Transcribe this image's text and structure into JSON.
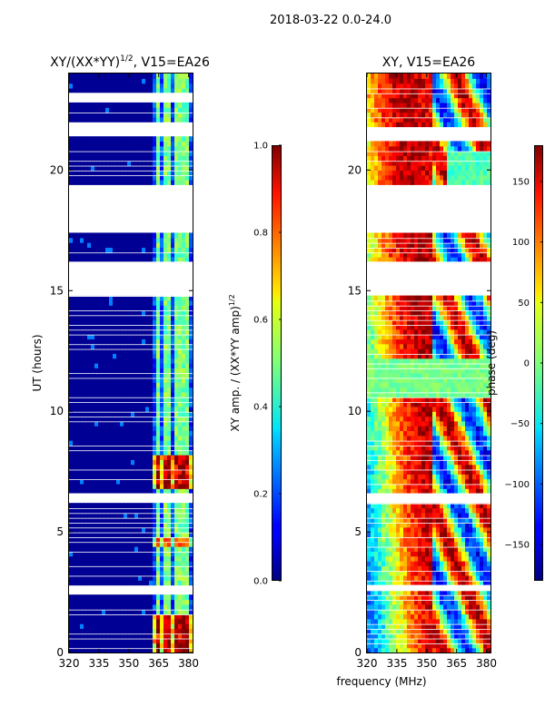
{
  "figure": {
    "suptitle": "2018-03-22 0.0-24.0",
    "common_xlabel": "frequency (MHz)"
  },
  "chart_data": [
    {
      "type": "heatmap",
      "title_main": "XY/(XX*YY)",
      "title_sup": "1/2",
      "title_tail": ", V15=EA26",
      "xlabel": "",
      "ylabel": "UT (hours)",
      "xlim": [
        320,
        382
      ],
      "ylim": [
        0,
        24
      ],
      "x_ticks": [
        320,
        335,
        350,
        365,
        380
      ],
      "y_ticks": [
        0,
        5,
        10,
        15,
        20
      ],
      "blank_bands": [
        [
          2.5,
          2.7
        ],
        [
          6.3,
          6.6
        ],
        [
          14.8,
          16.2
        ],
        [
          17.5,
          19.3
        ],
        [
          21.4,
          21.9
        ],
        [
          22.9,
          23.2
        ]
      ],
      "colorbar": {
        "label_main": "XY amp. / (XX*YY amp)",
        "label_sup": "1/2",
        "range": [
          0.0,
          1.0
        ],
        "ticks": [
          "0.0",
          "0.2",
          "0.4",
          "0.6",
          "0.8",
          "1.0"
        ],
        "tick_values": [
          0.0,
          0.2,
          0.4,
          0.6,
          0.8,
          1.0
        ]
      }
    },
    {
      "type": "heatmap",
      "title": "XY, V15=EA26",
      "xlabel": "",
      "ylabel": "",
      "xlim": [
        320,
        382
      ],
      "ylim": [
        0,
        24
      ],
      "x_ticks": [
        320,
        335,
        350,
        365,
        380
      ],
      "y_ticks": [
        0,
        5,
        10,
        15,
        20
      ],
      "blank_bands": [
        [
          2.6,
          2.8
        ],
        [
          6.3,
          6.6
        ],
        [
          14.8,
          16.2
        ],
        [
          17.4,
          19.3
        ],
        [
          21.3,
          21.7
        ]
      ],
      "colorbar": {
        "label": "phase (deg)",
        "range": [
          -180,
          180
        ],
        "ticks": [
          "−150",
          "−100",
          "−50",
          "0",
          "50",
          "100",
          "150"
        ],
        "tick_values": [
          -150,
          -100,
          -50,
          0,
          50,
          100,
          150
        ]
      }
    }
  ]
}
